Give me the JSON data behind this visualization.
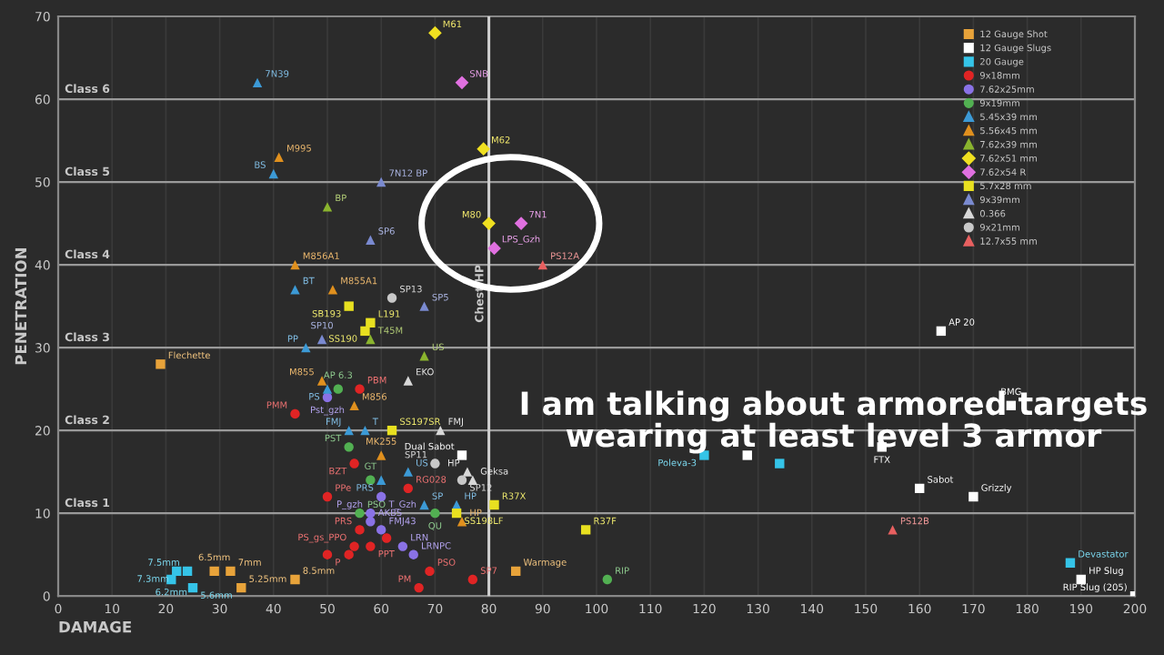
{
  "chart_data": {
    "type": "scatter",
    "xlabel": "DAMAGE",
    "ylabel": "PENETRATION",
    "xlim": [
      0,
      200
    ],
    "xticks": [
      0,
      10,
      20,
      30,
      40,
      50,
      60,
      70,
      80,
      90,
      100,
      110,
      120,
      130,
      140,
      150,
      160,
      170,
      180,
      190,
      200
    ],
    "ylim": [
      0,
      70
    ],
    "yticks": [
      0,
      10,
      20,
      30,
      40,
      50,
      60,
      70
    ],
    "grid": true,
    "legend": "top right",
    "series": [
      {
        "name": "12 Gauge Shot",
        "color": "#e8a33a",
        "marker": "square",
        "x": [
          19,
          29,
          32,
          34,
          44,
          85
        ],
        "values": [
          28,
          3,
          3,
          1,
          2,
          3
        ]
      },
      {
        "name": "12 Gauge Slugs",
        "color": "#ffffff",
        "marker": "square",
        "x": [
          75,
          164,
          177,
          153,
          128,
          160,
          170,
          190,
          200
        ],
        "values": [
          17,
          32,
          23,
          18,
          17,
          13,
          12,
          2,
          0
        ]
      },
      {
        "name": "20 Gauge",
        "color": "#35c4e8",
        "marker": "square",
        "x": [
          24,
          22,
          21,
          25,
          120,
          134,
          188
        ],
        "values": [
          3,
          3,
          2,
          1,
          17,
          16,
          4
        ]
      },
      {
        "name": "9x18mm",
        "color": "#e02424",
        "marker": "circle",
        "x": [
          56,
          44,
          55,
          65,
          50,
          56,
          55,
          58,
          61,
          50,
          54,
          69,
          77,
          67
        ],
        "values": [
          25,
          22,
          16,
          13,
          12,
          8,
          6,
          6,
          7,
          5,
          5,
          3,
          2,
          1
        ]
      },
      {
        "name": "7.62x25mm",
        "color": "#8a72e6",
        "marker": "circle",
        "x": [
          50,
          60,
          58,
          58,
          60,
          64,
          66
        ],
        "values": [
          24,
          12,
          10,
          9,
          8,
          6,
          5
        ]
      },
      {
        "name": "9x19mm",
        "color": "#52b052",
        "marker": "circle",
        "x": [
          52,
          54,
          58,
          56,
          70,
          102
        ],
        "values": [
          25,
          18,
          14,
          10,
          10,
          2
        ]
      },
      {
        "name": "5.45x39 mm",
        "color": "#3c9ad6",
        "marker": "triangle",
        "x": [
          37,
          40,
          44,
          50,
          46,
          54,
          57,
          65,
          60,
          68,
          74
        ],
        "values": [
          62,
          51,
          37,
          25,
          30,
          20,
          20,
          15,
          14,
          11,
          11
        ]
      },
      {
        "name": "5.56x45 mm",
        "color": "#e0901e",
        "marker": "triangle",
        "x": [
          41,
          44,
          51,
          49,
          55,
          60,
          75
        ],
        "values": [
          53,
          40,
          37,
          26,
          23,
          17,
          9
        ]
      },
      {
        "name": "7.62x39 mm",
        "color": "#8ab42e",
        "marker": "triangle",
        "x": [
          50,
          58,
          68
        ],
        "values": [
          47,
          31,
          29
        ]
      },
      {
        "name": "7.62x51 mm",
        "color": "#f0e020",
        "marker": "diamond",
        "x": [
          70,
          79,
          80
        ],
        "values": [
          68,
          54,
          45
        ]
      },
      {
        "name": "7.62x54 R",
        "color": "#e070e0",
        "marker": "diamond",
        "x": [
          75,
          86,
          81
        ],
        "values": [
          62,
          45,
          42
        ]
      },
      {
        "name": "5.7x28 mm",
        "color": "#e8e020",
        "marker": "square",
        "x": [
          54,
          58,
          57,
          62,
          81,
          74,
          98
        ],
        "values": [
          35,
          33,
          32,
          20,
          11,
          10,
          8
        ]
      },
      {
        "name": "9x39mm",
        "color": "#7a8ad0",
        "marker": "triangle",
        "x": [
          60,
          58,
          68,
          49
        ],
        "values": [
          50,
          43,
          35,
          31
        ]
      },
      {
        "name": "0.366",
        "color": "#d8d8d8",
        "marker": "triangle",
        "x": [
          65,
          71,
          77,
          76
        ],
        "values": [
          26,
          20,
          14,
          15
        ]
      },
      {
        "name": "9x21mm",
        "color": "#c8c8c8",
        "marker": "circle",
        "x": [
          62,
          70,
          75
        ],
        "values": [
          36,
          16,
          14
        ]
      },
      {
        "name": "12.7x55 mm",
        "color": "#e86060",
        "marker": "triangle",
        "x": [
          90,
          155
        ],
        "values": [
          40,
          8
        ]
      }
    ],
    "ref_lines": [
      {
        "axis": "y",
        "value": 10,
        "label": "Class 1"
      },
      {
        "axis": "y",
        "value": 20,
        "label": "Class 2"
      },
      {
        "axis": "y",
        "value": 30,
        "label": "Class 3"
      },
      {
        "axis": "y",
        "value": 40,
        "label": "Class 4"
      },
      {
        "axis": "y",
        "value": 50,
        "label": "Class 5"
      },
      {
        "axis": "y",
        "value": 60,
        "label": "Class 6"
      },
      {
        "axis": "x",
        "value": 80,
        "label": "Chest HP"
      }
    ],
    "annotations": [
      "I am talking about armored targets wearing at least level 3 armor",
      {
        "text": "Flechette",
        "x": 19,
        "y": 28
      },
      {
        "text": "6.5mm",
        "x": 29,
        "y": 3
      },
      {
        "text": "7mm",
        "x": 32,
        "y": 3
      },
      {
        "text": "5.25mm",
        "x": 34,
        "y": 1
      },
      {
        "text": "8.5mm",
        "x": 44,
        "y": 2
      },
      {
        "text": "Warmage",
        "x": 85,
        "y": 3
      },
      {
        "text": "Dual Sabot",
        "x": 75,
        "y": 17
      },
      {
        "text": "AP 20",
        "x": 164,
        "y": 32
      },
      {
        "text": "BMG",
        "x": 177,
        "y": 23
      },
      {
        "text": "FTX",
        "x": 153,
        "y": 18
      },
      {
        "text": "Sabot",
        "x": 160,
        "y": 13
      },
      {
        "text": "Grizzly",
        "x": 170,
        "y": 12
      },
      {
        "text": "HP Slug",
        "x": 190,
        "y": 2
      },
      {
        "text": "RIP Slug (205)",
        "x": 200,
        "y": 0
      },
      {
        "text": "7.5mm",
        "x": 24,
        "y": 3
      },
      {
        "text": "7.3mm",
        "x": 22,
        "y": 3
      },
      {
        "text": "6.2mm",
        "x": 21,
        "y": 2
      },
      {
        "text": "5.6mm",
        "x": 25,
        "y": 1
      },
      {
        "text": "Poleva-3",
        "x": 120,
        "y": 17
      },
      {
        "text": "Devastator",
        "x": 188,
        "y": 4
      },
      {
        "text": "PBM",
        "x": 56,
        "y": 25
      },
      {
        "text": "PMM",
        "x": 44,
        "y": 22
      },
      {
        "text": "BZT",
        "x": 55,
        "y": 16
      },
      {
        "text": "RG028",
        "x": 65,
        "y": 13
      },
      {
        "text": "PPe",
        "x": 50,
        "y": 12
      },
      {
        "text": "PRS",
        "x": 56,
        "y": 8
      },
      {
        "text": "PS_gs_PPO",
        "x": 55,
        "y": 6
      },
      {
        "text": "PPT",
        "x": 58,
        "y": 6
      },
      {
        "text": "P",
        "x": 50,
        "y": 5
      },
      {
        "text": "PSO",
        "x": 69,
        "y": 3
      },
      {
        "text": "SP7",
        "x": 77,
        "y": 2
      },
      {
        "text": "PM",
        "x": 67,
        "y": 1
      },
      {
        "text": "Pst_gzh",
        "x": 50,
        "y": 24
      },
      {
        "text": "T_Gzh",
        "x": 60,
        "y": 12
      },
      {
        "text": "P_gzh",
        "x": 58,
        "y": 10
      },
      {
        "text": "AKBS",
        "x": 58,
        "y": 9
      },
      {
        "text": "FMJ43",
        "x": 60,
        "y": 8
      },
      {
        "text": "LRN",
        "x": 64,
        "y": 6
      },
      {
        "text": "LRNPC",
        "x": 66,
        "y": 5
      },
      {
        "text": "AP 6.3",
        "x": 52,
        "y": 25
      },
      {
        "text": "PST",
        "x": 54,
        "y": 18
      },
      {
        "text": "GT",
        "x": 58,
        "y": 14
      },
      {
        "text": "PSO",
        "x": 56,
        "y": 10
      },
      {
        "text": "QU",
        "x": 70,
        "y": 10
      },
      {
        "text": "RIP",
        "x": 102,
        "y": 2
      },
      {
        "text": "7N39",
        "x": 37,
        "y": 62
      },
      {
        "text": "BS",
        "x": 40,
        "y": 51
      },
      {
        "text": "BT",
        "x": 44,
        "y": 37
      },
      {
        "text": "PS",
        "x": 50,
        "y": 25
      },
      {
        "text": "PP",
        "x": 46,
        "y": 30
      },
      {
        "text": "FMJ",
        "x": 54,
        "y": 20
      },
      {
        "text": "T",
        "x": 57,
        "y": 20
      },
      {
        "text": "US",
        "x": 65,
        "y": 15
      },
      {
        "text": "PRS",
        "x": 60,
        "y": 14
      },
      {
        "text": "SP",
        "x": 68,
        "y": 11
      },
      {
        "text": "HP",
        "x": 74,
        "y": 11
      },
      {
        "text": "M995",
        "x": 41,
        "y": 53
      },
      {
        "text": "M856A1",
        "x": 44,
        "y": 40
      },
      {
        "text": "M855A1",
        "x": 51,
        "y": 37
      },
      {
        "text": "M855",
        "x": 49,
        "y": 26
      },
      {
        "text": "M856",
        "x": 55,
        "y": 23
      },
      {
        "text": "MK255",
        "x": 60,
        "y": 17
      },
      {
        "text": "HP",
        "x": 75,
        "y": 9
      },
      {
        "text": "BP",
        "x": 50,
        "y": 47
      },
      {
        "text": "T45M",
        "x": 58,
        "y": 31
      },
      {
        "text": "US",
        "x": 68,
        "y": 29
      },
      {
        "text": "M61",
        "x": 70,
        "y": 68
      },
      {
        "text": "M62",
        "x": 79,
        "y": 54
      },
      {
        "text": "M80",
        "x": 80,
        "y": 45
      },
      {
        "text": "SNB",
        "x": 75,
        "y": 62
      },
      {
        "text": "7N1",
        "x": 86,
        "y": 45
      },
      {
        "text": "LPS_Gzh",
        "x": 81,
        "y": 42
      },
      {
        "text": "SB193",
        "x": 54,
        "y": 35
      },
      {
        "text": "L191",
        "x": 58,
        "y": 33
      },
      {
        "text": "SS190",
        "x": 57,
        "y": 32
      },
      {
        "text": "SS197SR",
        "x": 62,
        "y": 20
      },
      {
        "text": "R37X",
        "x": 81,
        "y": 11
      },
      {
        "text": "SS198LF",
        "x": 74,
        "y": 10
      },
      {
        "text": "R37F",
        "x": 98,
        "y": 8
      },
      {
        "text": "7N12 BP",
        "x": 60,
        "y": 50
      },
      {
        "text": "SP6",
        "x": 58,
        "y": 43
      },
      {
        "text": "SP5",
        "x": 68,
        "y": 35
      },
      {
        "text": "SP10",
        "x": 49,
        "y": 31
      },
      {
        "text": "EKO",
        "x": 65,
        "y": 26
      },
      {
        "text": "FMJ",
        "x": 71,
        "y": 20
      },
      {
        "text": "Geksa",
        "x": 77,
        "y": 14
      },
      {
        "text": "HP",
        "x": 76,
        "y": 15
      },
      {
        "text": "SP13",
        "x": 62,
        "y": 36
      },
      {
        "text": "SP11",
        "x": 70,
        "y": 16
      },
      {
        "text": "SP12",
        "x": 75,
        "y": 14
      },
      {
        "text": "PS12A",
        "x": 90,
        "y": 40
      },
      {
        "text": "PS12B",
        "x": 155,
        "y": 8
      }
    ]
  }
}
